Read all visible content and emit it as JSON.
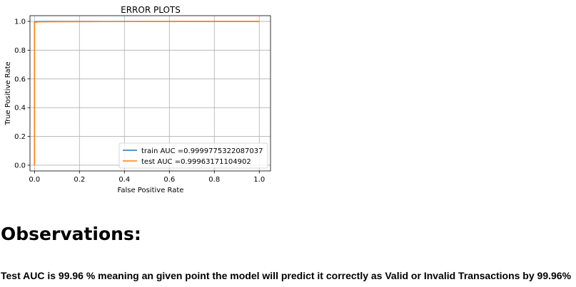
{
  "chart_data": {
    "type": "line",
    "title": "ERROR PLOTS",
    "xlabel": "False Positive Rate",
    "ylabel": "True Positive Rate",
    "xlim": [
      -0.02,
      1.05
    ],
    "ylim": [
      -0.04,
      1.04
    ],
    "xticks": [
      "0.0",
      "0.2",
      "0.4",
      "0.6",
      "0.8",
      "1.0"
    ],
    "yticks": [
      "0.0",
      "0.2",
      "0.4",
      "0.6",
      "0.8",
      "1.0"
    ],
    "grid": true,
    "legend_position": "lower-right",
    "series": [
      {
        "name": "train AUC =0.9999775322087037",
        "color": "#1f77b4",
        "x": [
          0.0,
          0.0,
          0.002,
          0.01,
          0.05,
          0.2,
          1.0
        ],
        "y": [
          0.0,
          0.99,
          0.997,
          0.999,
          0.9995,
          1.0,
          1.0
        ]
      },
      {
        "name": "test AUC =0.99963171104902",
        "color": "#ff7f0e",
        "x": [
          0.0,
          0.0,
          0.005,
          0.02,
          0.1,
          0.3,
          1.0
        ],
        "y": [
          0.0,
          0.99,
          0.995,
          0.997,
          0.998,
          0.999,
          1.0
        ]
      }
    ]
  },
  "observations": {
    "heading": "Observations:",
    "text": "Test AUC is 99.96 % meaning an given point the model will predict it correctly as Valid or Invalid Transactions by 99.96%"
  }
}
